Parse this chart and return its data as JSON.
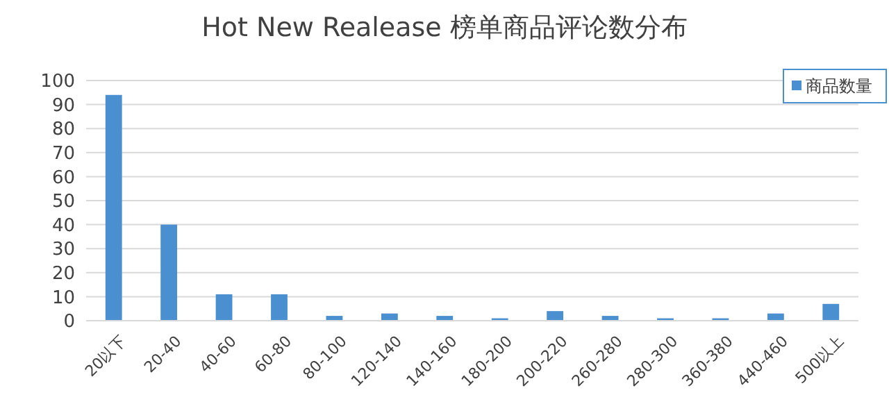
{
  "chart_data": {
    "type": "bar",
    "title": "Hot New Realease 榜单商品评论数分布",
    "categories": [
      "20以下",
      "20-40",
      "40-60",
      "60-80",
      "80-100",
      "120-140",
      "140-160",
      "180-200",
      "200-220",
      "260-280",
      "280-300",
      "360-380",
      "440-460",
      "500以上"
    ],
    "series": [
      {
        "name": "商品数量",
        "color": "#4a90d0",
        "values": [
          94,
          40,
          11,
          11,
          2,
          3,
          2,
          1,
          4,
          2,
          1,
          1,
          3,
          7
        ]
      }
    ],
    "ylim": [
      0,
      100
    ],
    "yticks": [
      0,
      10,
      20,
      30,
      40,
      50,
      60,
      70,
      80,
      90,
      100
    ],
    "grid": "y",
    "legend": "top right"
  }
}
